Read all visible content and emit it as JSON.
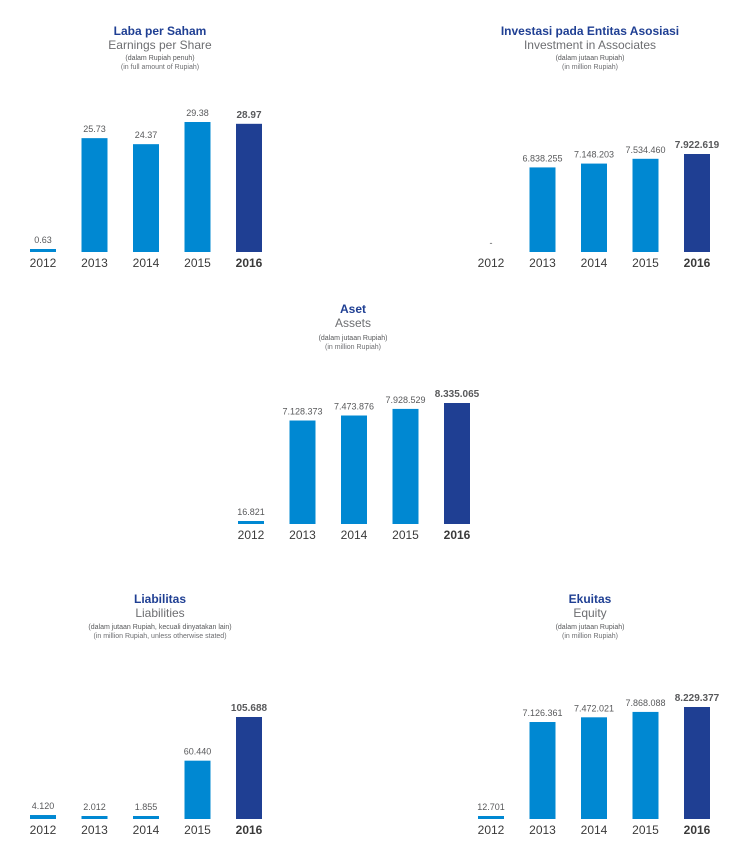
{
  "colors": {
    "bar": "#0088d2",
    "highlight": "#1f3f93",
    "value_text": "#58595b",
    "year_text": "#3a3a3a"
  },
  "chart_data": [
    {
      "id": "eps",
      "type": "bar",
      "title": "Laba per Saham",
      "subtitle": "Earnings per Share",
      "unit_id": "(dalam Rupiah penuh)",
      "unit_en": "(in full amount of Rupiah)",
      "categories": [
        "2012",
        "2013",
        "2014",
        "2015",
        "2016"
      ],
      "values": [
        0.63,
        25.73,
        24.37,
        29.38,
        28.97
      ],
      "value_labels": [
        "0.63",
        "25.73",
        "24.37",
        "29.38",
        "28.97"
      ],
      "highlight": "2016",
      "ylim": [
        0,
        29.38
      ]
    },
    {
      "id": "associates",
      "type": "bar",
      "title": "Investasi pada Entitas Asosiasi",
      "subtitle": "Investment in Associates",
      "unit_id": "(dalam jutaan Rupiah)",
      "unit_en": "(in million Rupiah)",
      "categories": [
        "2012",
        "2013",
        "2014",
        "2015",
        "2016"
      ],
      "values": [
        0,
        6838255,
        7148203,
        7534460,
        7922619
      ],
      "value_labels": [
        "-",
        "6.838.255",
        "7.148.203",
        "7.534.460",
        "7.922.619"
      ],
      "highlight": "2016",
      "ylim": [
        0,
        7922619
      ]
    },
    {
      "id": "assets",
      "type": "bar",
      "title": "Aset",
      "subtitle": "Assets",
      "unit_id": "(dalam jutaan Rupiah)",
      "unit_en": "(in million Rupiah)",
      "categories": [
        "2012",
        "2013",
        "2014",
        "2015",
        "2016"
      ],
      "values": [
        16821,
        7128373,
        7473876,
        7928529,
        8335065
      ],
      "value_labels": [
        "16.821",
        "7.128.373",
        "7.473.876",
        "7.928.529",
        "8.335.065"
      ],
      "highlight": "2016",
      "ylim": [
        0,
        8335065
      ]
    },
    {
      "id": "liabilities",
      "type": "bar",
      "title": "Liabilitas",
      "subtitle": "Liabilities",
      "unit_id": "(dalam jutaan Rupiah, kecuali dinyatakan lain)",
      "unit_en": "(in million Rupiah, unless otherwise stated)",
      "categories": [
        "2012",
        "2013",
        "2014",
        "2015",
        "2016"
      ],
      "values": [
        4120,
        2012,
        1855,
        60440,
        105688
      ],
      "value_labels": [
        "4.120",
        "2.012",
        "1.855",
        "60.440",
        "105.688"
      ],
      "highlight": "2016",
      "ylim": [
        0,
        105688
      ]
    },
    {
      "id": "equity",
      "type": "bar",
      "title": "Ekuitas",
      "subtitle": "Equity",
      "unit_id": "(dalam jutaan Rupiah)",
      "unit_en": "(in million Rupiah)",
      "categories": [
        "2012",
        "2013",
        "2014",
        "2015",
        "2016"
      ],
      "values": [
        12701,
        7126361,
        7472021,
        7868088,
        8229377
      ],
      "value_labels": [
        "12.701",
        "7.126.361",
        "7.472.021",
        "7.868.088",
        "8.229.377"
      ],
      "highlight": "2016",
      "ylim": [
        0,
        8229377
      ]
    }
  ]
}
